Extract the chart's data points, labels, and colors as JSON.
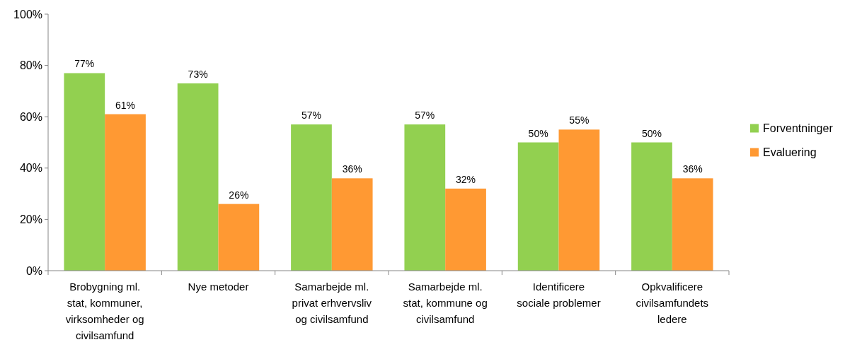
{
  "chart_data": {
    "type": "bar",
    "categories": [
      "Brobygning ml. stat, kommuner, virksomheder og civilsamfund",
      "Nye metoder",
      "Samarbejde ml. privat erhvervsliv og civilsamfund",
      "Samarbejde ml. stat, kommune og civilsamfund",
      "Identificere sociale problemer",
      "Opkvalificere civilsamfundets ledere"
    ],
    "series": [
      {
        "name": "Forventninger",
        "color": "#92d050",
        "values": [
          77,
          73,
          57,
          57,
          50,
          50
        ],
        "value_labels": [
          "77%",
          "73%",
          "57%",
          "57%",
          "50%",
          "50%"
        ]
      },
      {
        "name": "Evaluering",
        "color": "#ff9933",
        "values": [
          61,
          26,
          36,
          32,
          55,
          36
        ],
        "value_labels": [
          "61%",
          "26%",
          "36%",
          "32%",
          "55%",
          "36%"
        ]
      }
    ],
    "ylim": [
      0,
      100
    ],
    "yticks": [
      {
        "value": 0,
        "label": "0%"
      },
      {
        "value": 20,
        "label": "20%"
      },
      {
        "value": 40,
        "label": "40%"
      },
      {
        "value": 60,
        "label": "60%"
      },
      {
        "value": 80,
        "label": "80%"
      },
      {
        "value": 100,
        "label": "100%"
      }
    ],
    "grid": false,
    "legend": "right"
  }
}
